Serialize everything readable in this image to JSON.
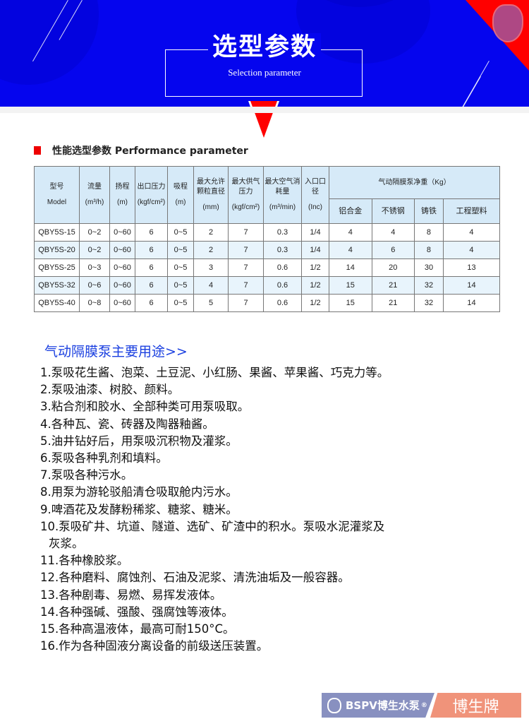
{
  "banner": {
    "title": "选型参数",
    "subtitle": "Selection parameter",
    "bg_color": "#0505ee",
    "accent": "#ff0000"
  },
  "section": {
    "title": "性能选型参数 Performance parameter"
  },
  "table": {
    "headers": [
      {
        "cn": "型号",
        "unit": "Model"
      },
      {
        "cn": "流量",
        "unit": "(m³/h)"
      },
      {
        "cn": "扬程",
        "unit": "(m)"
      },
      {
        "cn": "出口压力",
        "unit": "(kgf/cm²)"
      },
      {
        "cn": "吸程",
        "unit": "(m)"
      },
      {
        "cn": "最大允许颗粒直径",
        "unit": "(mm)"
      },
      {
        "cn": "最大供气压力",
        "unit": "(kgf/cm²)"
      },
      {
        "cn": "最大空气消耗量",
        "unit": "(m³/min)"
      },
      {
        "cn": "入口口径",
        "unit": "(Inc)"
      }
    ],
    "group_header": "气动隔膜泵净重（Kg）",
    "sub_headers": [
      "铝合金",
      "不锈钢",
      "铸铁",
      "工程塑料"
    ],
    "rows": [
      [
        "QBY5S-15",
        "0~2",
        "0~60",
        "6",
        "0~5",
        "2",
        "7",
        "0.3",
        "1/4",
        "4",
        "4",
        "8",
        "4"
      ],
      [
        "QBY5S-20",
        "0~2",
        "0~60",
        "6",
        "0~5",
        "2",
        "7",
        "0.3",
        "1/4",
        "4",
        "6",
        "8",
        "4"
      ],
      [
        "QBY5S-25",
        "0~3",
        "0~60",
        "6",
        "0~5",
        "3",
        "7",
        "0.6",
        "1/2",
        "14",
        "20",
        "30",
        "13"
      ],
      [
        "QBY5S-32",
        "0~6",
        "0~60",
        "6",
        "0~5",
        "4",
        "7",
        "0.6",
        "1/2",
        "15",
        "21",
        "32",
        "14"
      ],
      [
        "QBY5S-40",
        "0~8",
        "0~60",
        "6",
        "0~5",
        "5",
        "7",
        "0.6",
        "1/2",
        "15",
        "21",
        "32",
        "14"
      ]
    ]
  },
  "uses": {
    "title": "气动隔膜泵主要用途>>",
    "items": [
      "1.泵吸花生酱、泡菜、土豆泥、小红肠、果酱、苹果酱、巧克力等。",
      "2.泵吸油漆、树胶、颜料。",
      "3.粘合剂和胶水、全部种类可用泵吸取。",
      "4.各种瓦、瓷、砖器及陶器釉酱。",
      "5.油井钻好后，用泵吸沉积物及灌浆。",
      "6.泵吸各种乳剂和填料。",
      "7.泵吸各种污水。",
      "8.用泵为游轮驳船清仓吸取舱内污水。",
      "9.啤酒花及发酵粉稀浆、糖浆、糖米。",
      "10.泵吸矿井、坑道、隧道、选矿、矿渣中的积水。泵吸水泥灌浆及",
      "灰浆。",
      "11.各种橡胶浆。",
      "12.各种磨料、腐蚀剂、石油及泥浆、清洗油垢及一般容器。",
      "13.各种剧毒、易燃、易挥发液体。",
      "14.各种强碱、强酸、强腐蚀等液体。",
      "15.各种高温液体，最高可耐150°C。",
      "16.作为各种固液分离设备的前级送压装置。"
    ]
  },
  "footer": {
    "brand": "BSPV博生水泵",
    "registered": "®",
    "brand_name": "博生牌"
  }
}
